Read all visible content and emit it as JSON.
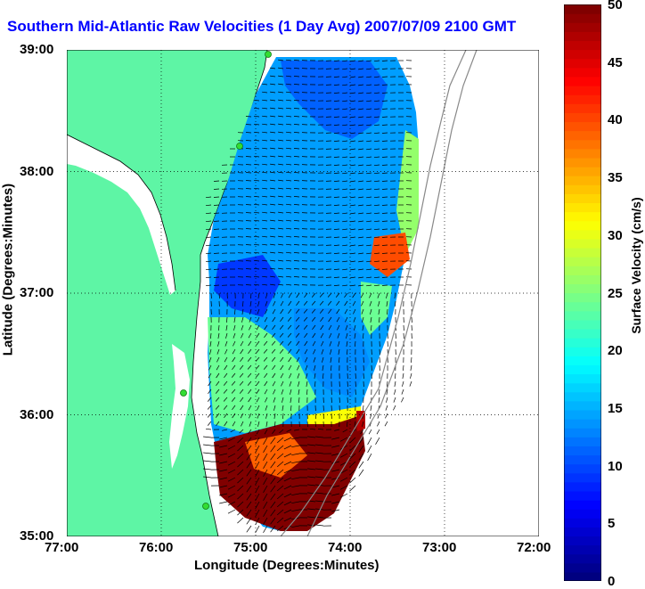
{
  "title": "Southern Mid-Atlantic Raw Velocities (1 Day Avg) 2007/07/09 2100 GMT",
  "x_axis": {
    "label": "Longitude (Degrees:Minutes)",
    "ticks": [
      "77:00",
      "76:00",
      "75:00",
      "74:00",
      "73:00",
      "72:00"
    ]
  },
  "y_axis": {
    "label": "Latitude (Degrees:Minutes)",
    "ticks": [
      "39:00",
      "38:00",
      "37:00",
      "36:00",
      "35:00"
    ]
  },
  "colorbar": {
    "label": "Surface Velocity (cm/s)",
    "ticks": [
      "50",
      "45",
      "40",
      "35",
      "30",
      "25",
      "20",
      "15",
      "10",
      "5",
      "0"
    ],
    "range": [
      0,
      50
    ]
  },
  "colors": {
    "land": "#5ef5a5",
    "water": "#ffffff",
    "title": "#0000ff",
    "station": "#33dd33"
  },
  "map": {
    "lon_range": [
      -77,
      -72
    ],
    "lat_range": [
      35,
      39
    ],
    "grid": "dotted"
  }
}
